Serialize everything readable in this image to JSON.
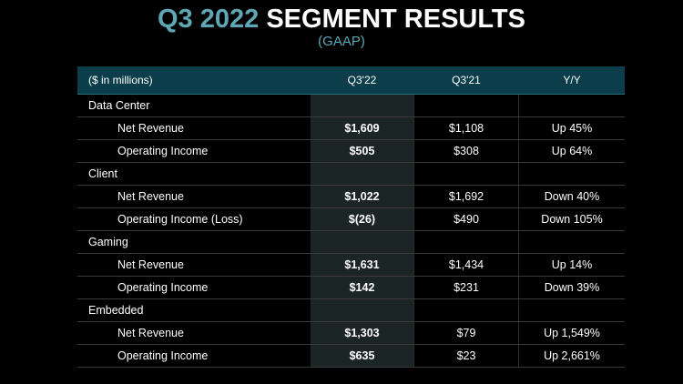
{
  "header": {
    "title_accent": "Q3 2022",
    "title_rest": "SEGMENT RESULTS",
    "subtitle": "(GAAP)"
  },
  "table": {
    "columns": [
      "($ in millions)",
      "Q3'22",
      "Q3'21",
      "Y/Y"
    ],
    "rows": [
      {
        "label": "Data Center",
        "q3_22": "",
        "q3_21": "",
        "yy": ""
      },
      {
        "label": "Net Revenue",
        "q3_22": "$1,609",
        "q3_21": "$1,108",
        "yy": "Up 45%"
      },
      {
        "label": "Operating Income",
        "q3_22": "$505",
        "q3_21": "$308",
        "yy": "Up 64%"
      },
      {
        "label": "Client",
        "q3_22": "",
        "q3_21": "",
        "yy": ""
      },
      {
        "label": "Net Revenue",
        "q3_22": "$1,022",
        "q3_21": "$1,692",
        "yy": "Down 40%"
      },
      {
        "label": "Operating Income (Loss)",
        "q3_22": "$(26)",
        "q3_21": "$490",
        "yy": "Down 105%"
      },
      {
        "label": "Gaming",
        "q3_22": "",
        "q3_21": "",
        "yy": ""
      },
      {
        "label": "Net Revenue",
        "q3_22": "$1,631",
        "q3_21": "$1,434",
        "yy": "Up 14%"
      },
      {
        "label": "Operating Income",
        "q3_22": "$142",
        "q3_21": "$231",
        "yy": "Down 39%"
      },
      {
        "label": "Embedded",
        "q3_22": "",
        "q3_21": "",
        "yy": ""
      },
      {
        "label": "Net Revenue",
        "q3_22": "$1,303",
        "q3_21": "$79",
        "yy": "Up 1,549%"
      },
      {
        "label": "Operating Income",
        "q3_22": "$635",
        "q3_21": "$23",
        "yy": "Up 2,661%"
      }
    ]
  },
  "colors": {
    "accent": "#5fa7b6",
    "header_bg": "#0b3e4a",
    "highlight_column_bg": "#1c2526",
    "background": "#000000"
  }
}
